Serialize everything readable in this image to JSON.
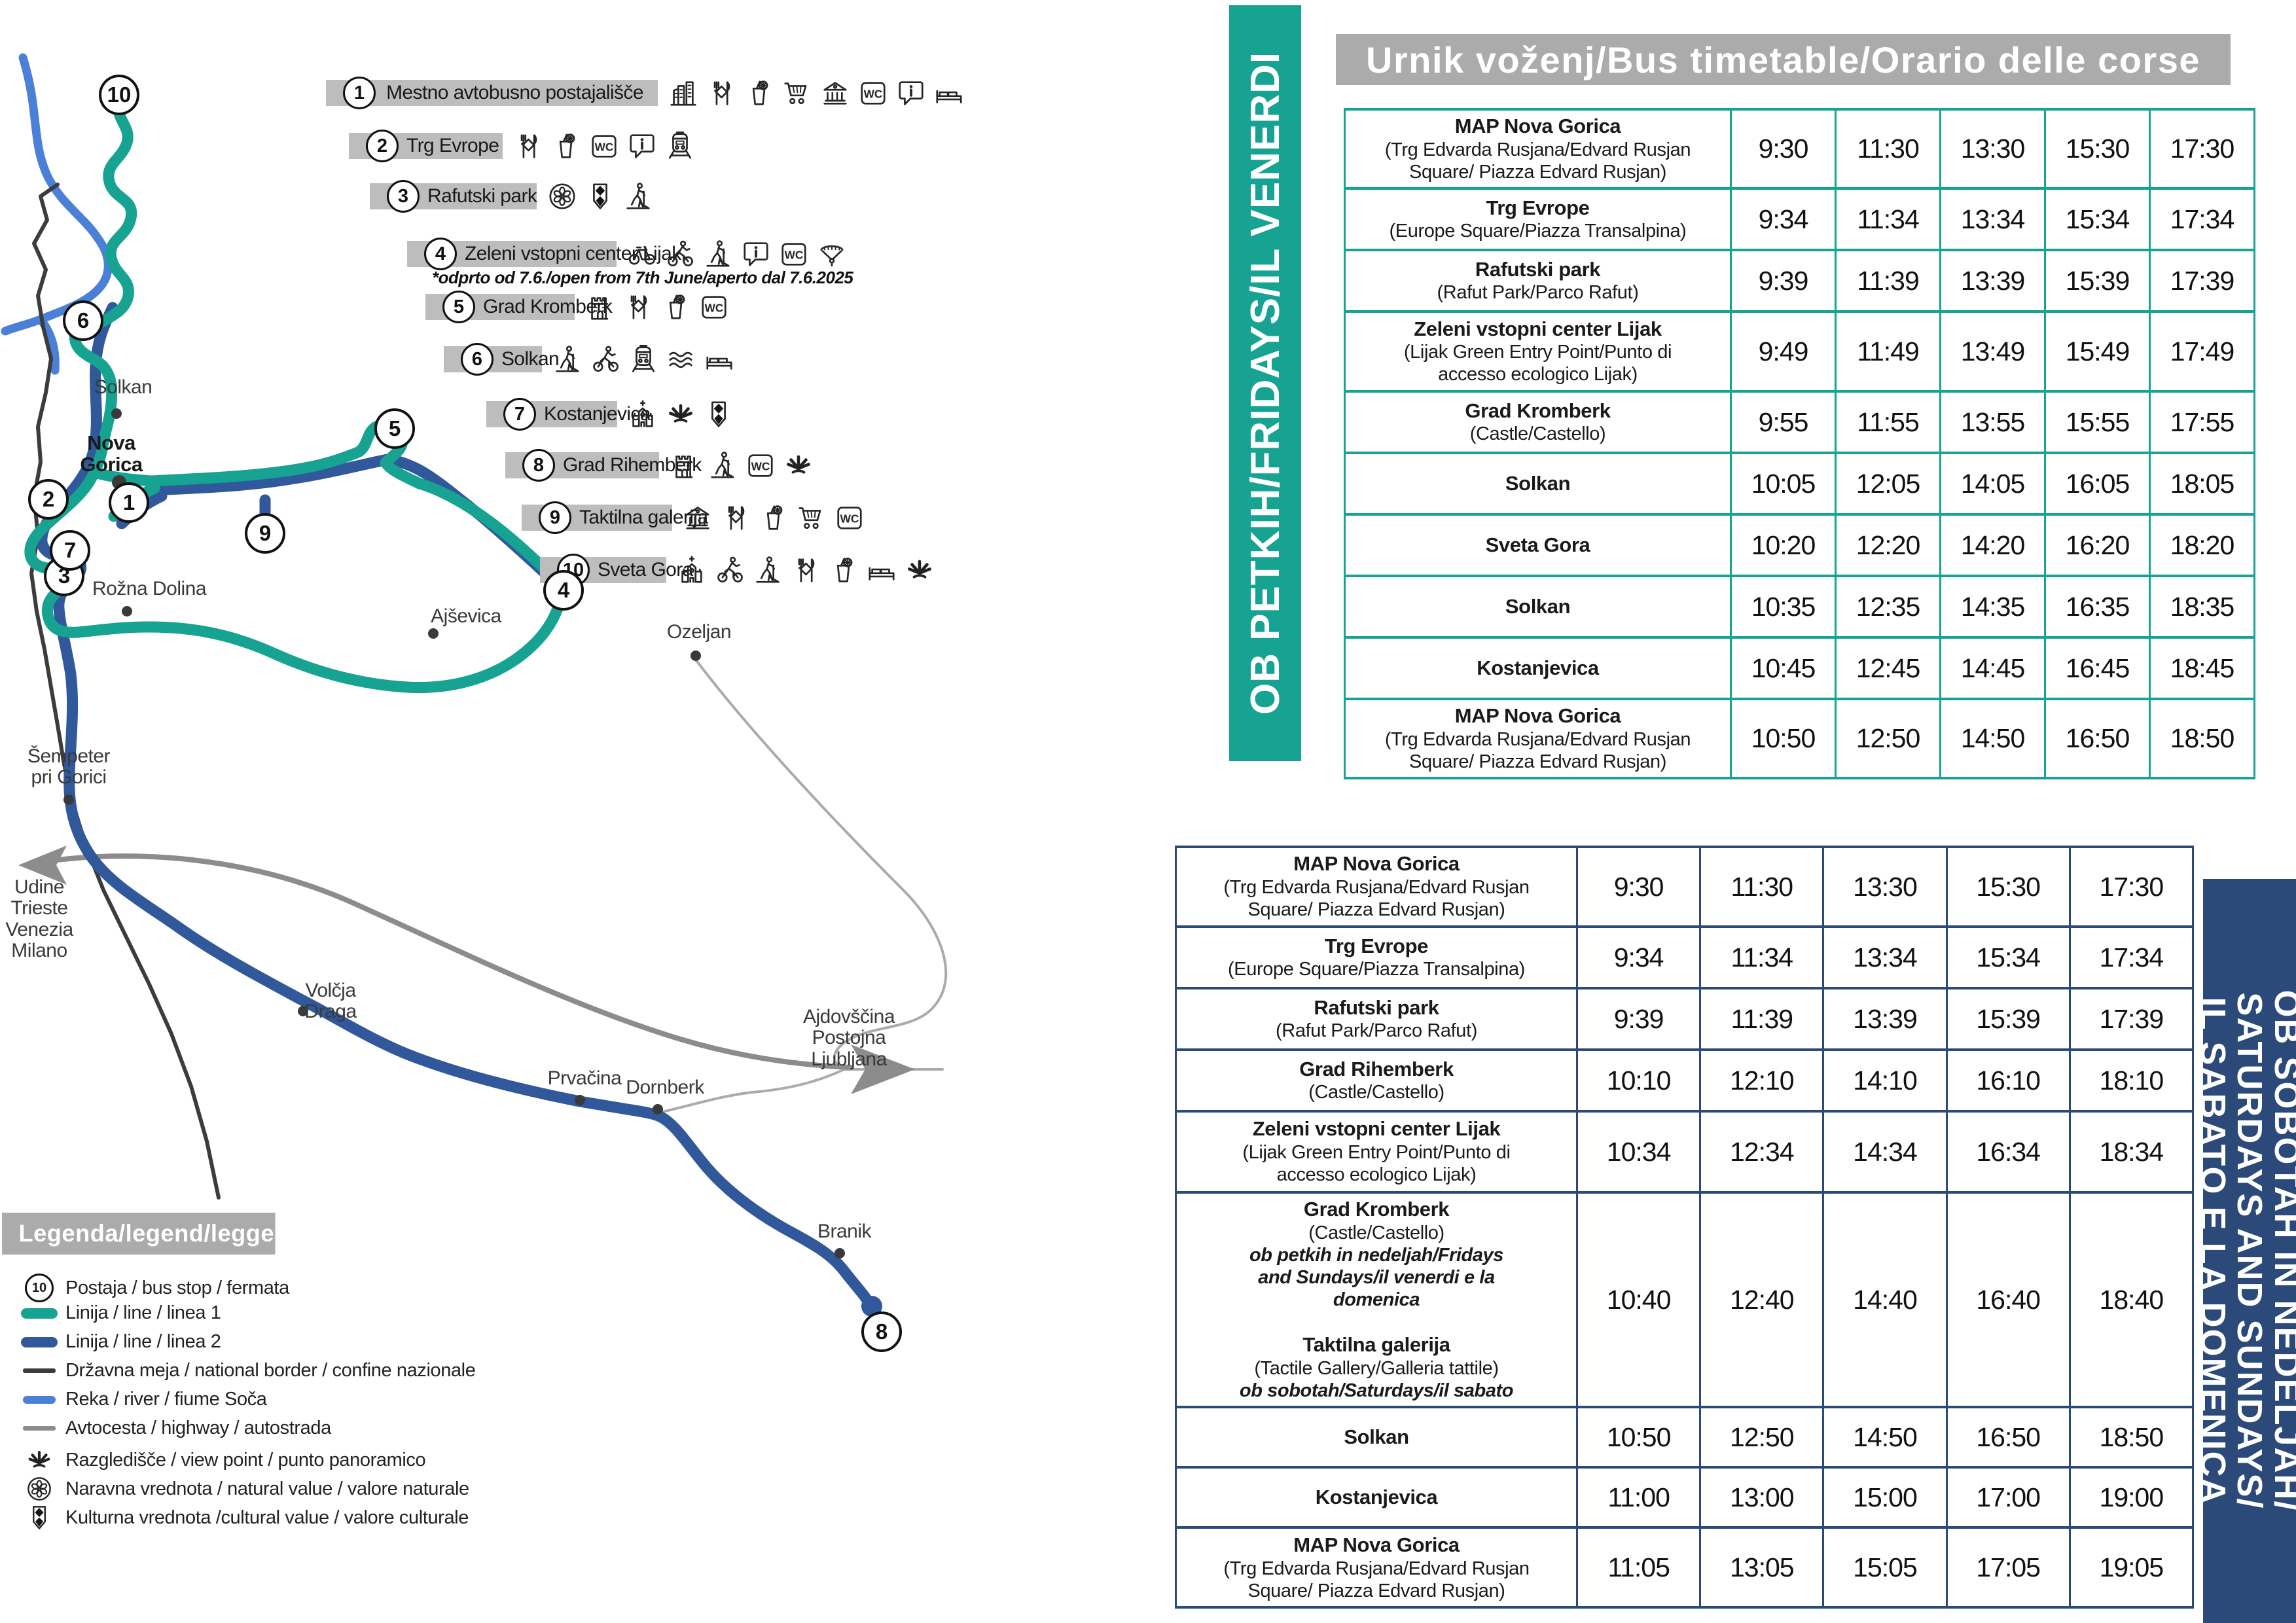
{
  "colors": {
    "line1": "#16A392",
    "line2": "#30589A",
    "navy": "#2B4A7A",
    "river": "#4A80D8",
    "highway": "#8C8C8C",
    "thin_road": "#ABABAB",
    "border_line": "#3C3C3C",
    "label_bar": "#BDBDBD",
    "header_bar": "#ABABAB"
  },
  "banners": {
    "friday": "OB PETKIH/FRIDAYS/IL VENERDI",
    "weekend": [
      "OB SOBOTAH IN NEDELJAH/",
      "SATURDAYS AND SUNDAYS/",
      "IL SABATO E LA DOMENICA"
    ]
  },
  "timetable": {
    "header": "Urnik voženj/Bus timetable/Orario delle corse",
    "friday": {
      "rows": [
        {
          "lines": [
            [
              "b",
              "MAP Nova Gorica"
            ],
            [
              "p",
              "(Trg Edvarda Rusjana/Edvard Rusjan"
            ],
            [
              "p",
              "Square/ Piazza Edvard Rusjan)"
            ]
          ],
          "times": [
            "9:30",
            "11:30",
            "13:30",
            "15:30",
            "17:30"
          ]
        },
        {
          "lines": [
            [
              "b",
              "Trg Evrope"
            ],
            [
              "p",
              "(Europe Square/Piazza Transalpina)"
            ]
          ],
          "times": [
            "9:34",
            "11:34",
            "13:34",
            "15:34",
            "17:34"
          ]
        },
        {
          "lines": [
            [
              "b",
              "Rafutski park"
            ],
            [
              "p",
              "(Rafut Park/Parco Rafut)"
            ]
          ],
          "times": [
            "9:39",
            "11:39",
            "13:39",
            "15:39",
            "17:39"
          ]
        },
        {
          "lines": [
            [
              "b",
              "Zeleni vstopni center Lijak"
            ],
            [
              "p",
              "(Lijak Green Entry Point/Punto di"
            ],
            [
              "p",
              "accesso ecologico Lijak)"
            ]
          ],
          "times": [
            "9:49",
            "11:49",
            "13:49",
            "15:49",
            "17:49"
          ]
        },
        {
          "lines": [
            [
              "b",
              "Grad Kromberk"
            ],
            [
              "p",
              "(Castle/Castello)"
            ]
          ],
          "times": [
            "9:55",
            "11:55",
            "13:55",
            "15:55",
            "17:55"
          ]
        },
        {
          "lines": [
            [
              "b",
              "Solkan"
            ]
          ],
          "times": [
            "10:05",
            "12:05",
            "14:05",
            "16:05",
            "18:05"
          ]
        },
        {
          "lines": [
            [
              "b",
              "Sveta Gora"
            ]
          ],
          "times": [
            "10:20",
            "12:20",
            "14:20",
            "16:20",
            "18:20"
          ]
        },
        {
          "lines": [
            [
              "b",
              "Solkan"
            ]
          ],
          "times": [
            "10:35",
            "12:35",
            "14:35",
            "16:35",
            "18:35"
          ]
        },
        {
          "lines": [
            [
              "b",
              "Kostanjevica"
            ]
          ],
          "times": [
            "10:45",
            "12:45",
            "14:45",
            "16:45",
            "18:45"
          ]
        },
        {
          "lines": [
            [
              "b",
              "MAP Nova Gorica"
            ],
            [
              "p",
              "(Trg Edvarda Rusjana/Edvard Rusjan"
            ],
            [
              "p",
              "Square/ Piazza Edvard Rusjan)"
            ]
          ],
          "times": [
            "10:50",
            "12:50",
            "14:50",
            "16:50",
            "18:50"
          ]
        }
      ]
    },
    "weekend": {
      "rows": [
        {
          "lines": [
            [
              "b",
              "MAP Nova Gorica"
            ],
            [
              "p",
              "(Trg Edvarda Rusjana/Edvard Rusjan"
            ],
            [
              "p",
              "Square/ Piazza Edvard Rusjan)"
            ]
          ],
          "times": [
            "9:30",
            "11:30",
            "13:30",
            "15:30",
            "17:30"
          ]
        },
        {
          "lines": [
            [
              "b",
              "Trg Evrope"
            ],
            [
              "p",
              "(Europe Square/Piazza Transalpina)"
            ]
          ],
          "times": [
            "9:34",
            "11:34",
            "13:34",
            "15:34",
            "17:34"
          ]
        },
        {
          "lines": [
            [
              "b",
              "Rafutski park"
            ],
            [
              "p",
              "(Rafut Park/Parco Rafut)"
            ]
          ],
          "times": [
            "9:39",
            "11:39",
            "13:39",
            "15:39",
            "17:39"
          ]
        },
        {
          "lines": [
            [
              "b",
              "Grad Rihemberk"
            ],
            [
              "p",
              "(Castle/Castello)"
            ]
          ],
          "times": [
            "10:10",
            "12:10",
            "14:10",
            "16:10",
            "18:10"
          ]
        },
        {
          "lines": [
            [
              "b",
              "Zeleni vstopni center Lijak"
            ],
            [
              "p",
              "(Lijak Green Entry Point/Punto di"
            ],
            [
              "p",
              "accesso ecologico Lijak)"
            ]
          ],
          "times": [
            "10:34",
            "12:34",
            "14:34",
            "16:34",
            "18:34"
          ]
        },
        {
          "lines": [
            [
              "b",
              "Grad Kromberk"
            ],
            [
              "p",
              "(Castle/Castello)"
            ],
            [
              "bi",
              "ob petkih in nedeljah/Fridays"
            ],
            [
              "bi",
              "and Sundays/il venerdi e la"
            ],
            [
              "bi",
              "domenica"
            ],
            [
              "sp",
              ""
            ],
            [
              "b",
              "Taktilna galerija"
            ],
            [
              "p",
              "(Tactile Gallery/Galleria tattile)"
            ],
            [
              "bi",
              "ob sobotah/Saturdays/il sabato"
            ]
          ],
          "times": [
            "10:40",
            "12:40",
            "14:40",
            "16:40",
            "18:40"
          ]
        },
        {
          "lines": [
            [
              "b",
              "Solkan"
            ]
          ],
          "times": [
            "10:50",
            "12:50",
            "14:50",
            "16:50",
            "18:50"
          ]
        },
        {
          "lines": [
            [
              "b",
              "Kostanjevica"
            ]
          ],
          "times": [
            "11:00",
            "13:00",
            "15:00",
            "17:00",
            "19:00"
          ]
        },
        {
          "lines": [
            [
              "b",
              "MAP Nova Gorica"
            ],
            [
              "p",
              "(Trg Edvarda Rusjana/Edvard Rusjan"
            ],
            [
              "p",
              "Square/ Piazza Edvard Rusjan)"
            ]
          ],
          "times": [
            "11:05",
            "13:05",
            "15:05",
            "17:05",
            "19:05"
          ]
        }
      ]
    }
  },
  "map": {
    "stops": [
      {
        "num": "1",
        "label": "Mestno avtobusno postajališče",
        "icons": [
          "city",
          "restaurant",
          "drink",
          "cart",
          "museum",
          "wc",
          "info",
          "bed"
        ]
      },
      {
        "num": "2",
        "label": "Trg Evrope",
        "icons": [
          "restaurant",
          "drink",
          "wc",
          "info",
          "train"
        ]
      },
      {
        "num": "3",
        "label": "Rafutski park",
        "icons": [
          "nature",
          "culture",
          "hiker"
        ]
      },
      {
        "num": "4",
        "label": "Zeleni vstopni center Lijak",
        "note": "*odprto od 7.6./open from 7th June/aperto dal 7.6.2025",
        "icons": [
          "bike",
          "cyclist",
          "hiker",
          "info",
          "wc",
          "paraglider"
        ]
      },
      {
        "num": "5",
        "label": "Grad Kromberk",
        "icons": [
          "castle",
          "restaurant",
          "drink",
          "wc"
        ]
      },
      {
        "num": "6",
        "label": "Solkan",
        "icons": [
          "hiker",
          "cyclist",
          "train",
          "waves",
          "bed"
        ]
      },
      {
        "num": "7",
        "label": "Kostanjevica",
        "icons": [
          "church",
          "viewpoint",
          "culture"
        ]
      },
      {
        "num": "8",
        "label": "Grad Rihemberk",
        "icons": [
          "castle",
          "hiker",
          "wc",
          "viewpoint"
        ]
      },
      {
        "num": "9",
        "label": "Taktilna galerija",
        "icons": [
          "museum",
          "restaurant",
          "drink",
          "cart",
          "wc"
        ]
      },
      {
        "num": "10",
        "label": "Sveta Gora",
        "icons": [
          "church",
          "cyclist",
          "hiker",
          "restaurant",
          "drink",
          "bed",
          "viewpoint"
        ]
      }
    ],
    "towns": [
      {
        "key": "solkan",
        "lines": [
          "Solkan"
        ]
      },
      {
        "key": "nova-gorica",
        "lines": [
          "Nova",
          "Gorica"
        ],
        "bold": true
      },
      {
        "key": "rozna-dolina",
        "lines": [
          "Rožna Dolina"
        ]
      },
      {
        "key": "ajsevica",
        "lines": [
          "Ajševica"
        ]
      },
      {
        "key": "ozeljan",
        "lines": [
          "Ozeljan"
        ]
      },
      {
        "key": "sempeter",
        "lines": [
          "Šempeter",
          "pri Gorici"
        ]
      },
      {
        "key": "volcja-draga",
        "lines": [
          "Volčja",
          "Draga"
        ]
      },
      {
        "key": "prvacina",
        "lines": [
          "Prvačina"
        ]
      },
      {
        "key": "dornberk",
        "lines": [
          "Dornberk"
        ]
      },
      {
        "key": "branik",
        "lines": [
          "Branik"
        ]
      },
      {
        "key": "udine",
        "lines": [
          "Udine",
          "Trieste",
          "Venezia",
          "Milano"
        ],
        "dot": false
      },
      {
        "key": "ajdovscina",
        "lines": [
          "Ajdovščina",
          "Postojna",
          "Ljubljana"
        ],
        "dot": false
      }
    ]
  },
  "legend": {
    "title": "Legenda/legend/leggenda",
    "items": [
      {
        "icon": "stop-badge",
        "label": "Postaja / bus stop / fermata"
      },
      {
        "icon": "swatch-line1",
        "label": "Linija / line / linea 1"
      },
      {
        "icon": "swatch-line2",
        "label": "Linija / line / linea 2"
      },
      {
        "icon": "swatch-border",
        "label": "Državna meja / national border / confine nazionale"
      },
      {
        "icon": "swatch-river",
        "label": "Reka / river / fiume Soča"
      },
      {
        "icon": "swatch-highway",
        "label": "Avtocesta / highway / autostrada"
      },
      {
        "icon": "viewpoint",
        "label": "Razgledišče / view point / punto panoramico"
      },
      {
        "icon": "nature",
        "label": "Naravna vrednota / natural value / valore naturale"
      },
      {
        "icon": "culture",
        "label": "Kulturna vrednota /cultural value / valore culturale"
      }
    ]
  }
}
